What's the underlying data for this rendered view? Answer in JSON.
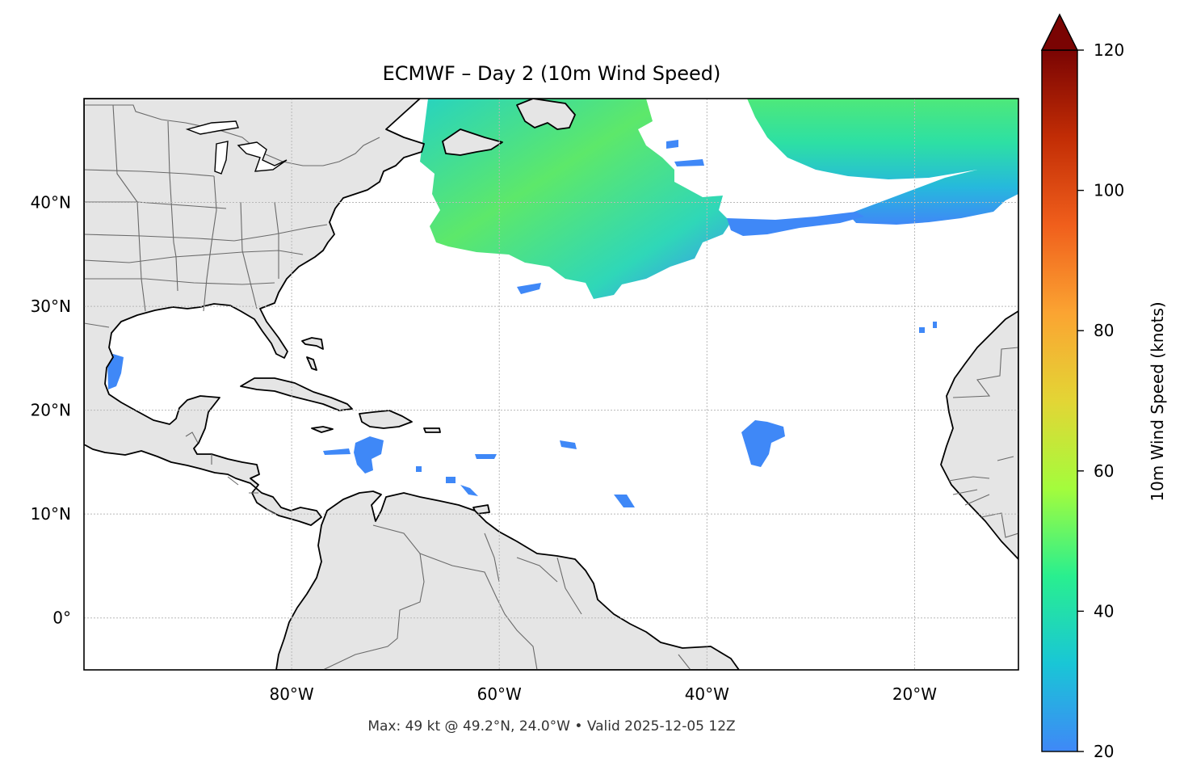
{
  "title": "ECMWF – Day 2 (10m Wind Speed)",
  "footer": "Max: 49 kt @ 49.2°N, 24.0°W • Valid 2025-12-05 12Z",
  "map": {
    "lon_range": [
      -100,
      -10
    ],
    "lat_range": [
      -5,
      50
    ],
    "lat_ticks": [
      {
        "value": 40,
        "label": "40°N"
      },
      {
        "value": 30,
        "label": "30°N"
      },
      {
        "value": 20,
        "label": "20°N"
      },
      {
        "value": 10,
        "label": "10°N"
      },
      {
        "value": 0,
        "label": "0°"
      }
    ],
    "lon_ticks": [
      {
        "value": -80,
        "label": "80°W"
      },
      {
        "value": -60,
        "label": "60°W"
      },
      {
        "value": -40,
        "label": "40°W"
      },
      {
        "value": -20,
        "label": "20°W"
      }
    ],
    "gridlines": "dotted",
    "land_color": "#e5e5e5",
    "ocean_color": "#ffffff"
  },
  "colorbar": {
    "label": "10m Wind Speed (knots)",
    "min": 20,
    "max": 120,
    "extend": "max",
    "ticks": [
      {
        "value": 20,
        "label": "20"
      },
      {
        "value": 40,
        "label": "40"
      },
      {
        "value": 60,
        "label": "60"
      },
      {
        "value": 80,
        "label": "80"
      },
      {
        "value": 100,
        "label": "100"
      },
      {
        "value": 120,
        "label": "120"
      }
    ],
    "colors": [
      "#3f88f7",
      "#19c6d6",
      "#29ef8f",
      "#a4fc3c",
      "#e3d535",
      "#fba432",
      "#f05f1c",
      "#c22d05",
      "#7a0403"
    ]
  }
}
